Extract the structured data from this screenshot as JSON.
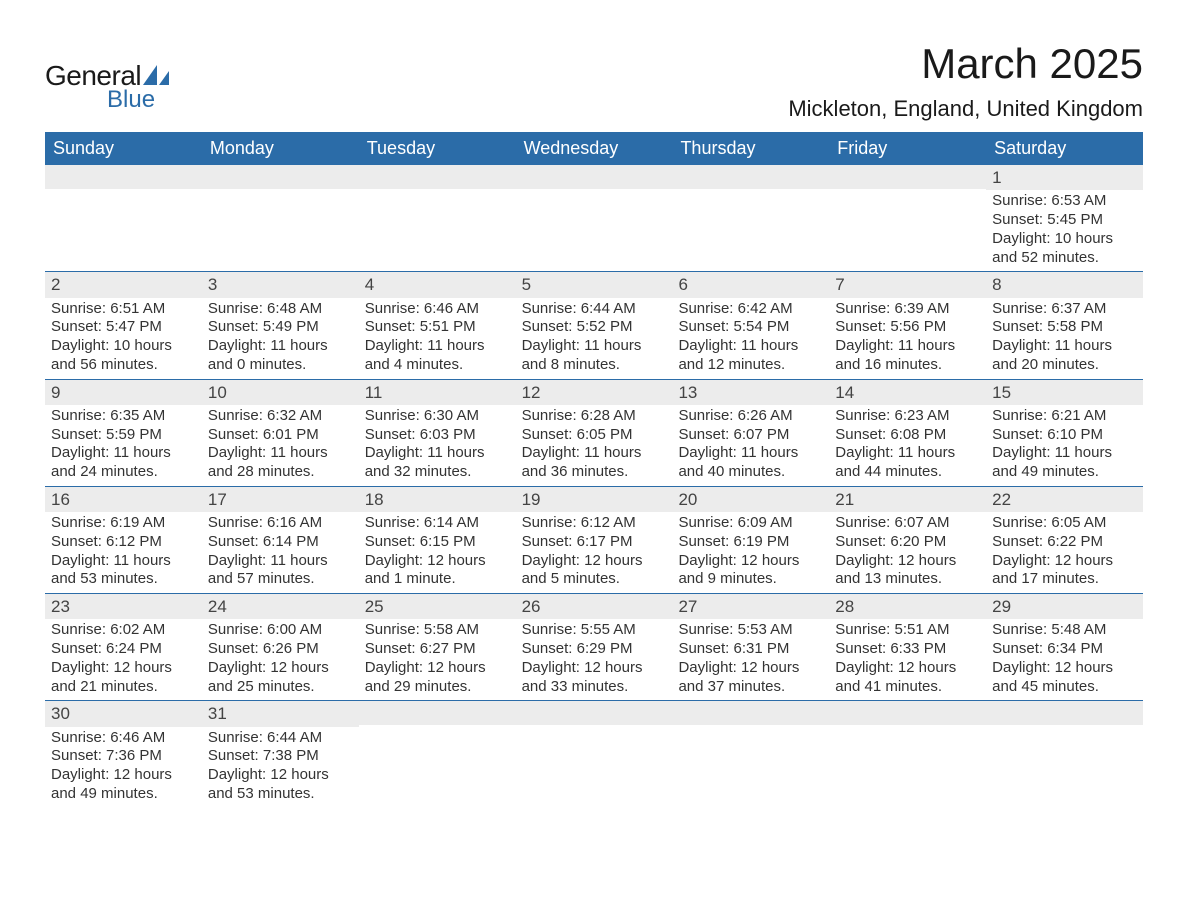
{
  "logo": {
    "text_general": "General",
    "text_blue": "Blue",
    "sail_color": "#2b6ca8",
    "text_color": "#1a1a1a"
  },
  "title": "March 2025",
  "location": "Mickleton, England, United Kingdom",
  "colors": {
    "header_bg": "#2b6ca8",
    "header_text": "#ffffff",
    "daynum_bg": "#ececec",
    "row_border": "#2b6ca8",
    "body_text": "#333333",
    "background": "#ffffff"
  },
  "typography": {
    "title_fontsize": 42,
    "location_fontsize": 22,
    "header_fontsize": 18,
    "daynum_fontsize": 17,
    "cell_fontsize": 15,
    "font_family": "Arial"
  },
  "day_headers": [
    "Sunday",
    "Monday",
    "Tuesday",
    "Wednesday",
    "Thursday",
    "Friday",
    "Saturday"
  ],
  "weeks": [
    [
      null,
      null,
      null,
      null,
      null,
      null,
      {
        "n": "1",
        "sunrise": "Sunrise: 6:53 AM",
        "sunset": "Sunset: 5:45 PM",
        "d1": "Daylight: 10 hours",
        "d2": "and 52 minutes."
      }
    ],
    [
      {
        "n": "2",
        "sunrise": "Sunrise: 6:51 AM",
        "sunset": "Sunset: 5:47 PM",
        "d1": "Daylight: 10 hours",
        "d2": "and 56 minutes."
      },
      {
        "n": "3",
        "sunrise": "Sunrise: 6:48 AM",
        "sunset": "Sunset: 5:49 PM",
        "d1": "Daylight: 11 hours",
        "d2": "and 0 minutes."
      },
      {
        "n": "4",
        "sunrise": "Sunrise: 6:46 AM",
        "sunset": "Sunset: 5:51 PM",
        "d1": "Daylight: 11 hours",
        "d2": "and 4 minutes."
      },
      {
        "n": "5",
        "sunrise": "Sunrise: 6:44 AM",
        "sunset": "Sunset: 5:52 PM",
        "d1": "Daylight: 11 hours",
        "d2": "and 8 minutes."
      },
      {
        "n": "6",
        "sunrise": "Sunrise: 6:42 AM",
        "sunset": "Sunset: 5:54 PM",
        "d1": "Daylight: 11 hours",
        "d2": "and 12 minutes."
      },
      {
        "n": "7",
        "sunrise": "Sunrise: 6:39 AM",
        "sunset": "Sunset: 5:56 PM",
        "d1": "Daylight: 11 hours",
        "d2": "and 16 minutes."
      },
      {
        "n": "8",
        "sunrise": "Sunrise: 6:37 AM",
        "sunset": "Sunset: 5:58 PM",
        "d1": "Daylight: 11 hours",
        "d2": "and 20 minutes."
      }
    ],
    [
      {
        "n": "9",
        "sunrise": "Sunrise: 6:35 AM",
        "sunset": "Sunset: 5:59 PM",
        "d1": "Daylight: 11 hours",
        "d2": "and 24 minutes."
      },
      {
        "n": "10",
        "sunrise": "Sunrise: 6:32 AM",
        "sunset": "Sunset: 6:01 PM",
        "d1": "Daylight: 11 hours",
        "d2": "and 28 minutes."
      },
      {
        "n": "11",
        "sunrise": "Sunrise: 6:30 AM",
        "sunset": "Sunset: 6:03 PM",
        "d1": "Daylight: 11 hours",
        "d2": "and 32 minutes."
      },
      {
        "n": "12",
        "sunrise": "Sunrise: 6:28 AM",
        "sunset": "Sunset: 6:05 PM",
        "d1": "Daylight: 11 hours",
        "d2": "and 36 minutes."
      },
      {
        "n": "13",
        "sunrise": "Sunrise: 6:26 AM",
        "sunset": "Sunset: 6:07 PM",
        "d1": "Daylight: 11 hours",
        "d2": "and 40 minutes."
      },
      {
        "n": "14",
        "sunrise": "Sunrise: 6:23 AM",
        "sunset": "Sunset: 6:08 PM",
        "d1": "Daylight: 11 hours",
        "d2": "and 44 minutes."
      },
      {
        "n": "15",
        "sunrise": "Sunrise: 6:21 AM",
        "sunset": "Sunset: 6:10 PM",
        "d1": "Daylight: 11 hours",
        "d2": "and 49 minutes."
      }
    ],
    [
      {
        "n": "16",
        "sunrise": "Sunrise: 6:19 AM",
        "sunset": "Sunset: 6:12 PM",
        "d1": "Daylight: 11 hours",
        "d2": "and 53 minutes."
      },
      {
        "n": "17",
        "sunrise": "Sunrise: 6:16 AM",
        "sunset": "Sunset: 6:14 PM",
        "d1": "Daylight: 11 hours",
        "d2": "and 57 minutes."
      },
      {
        "n": "18",
        "sunrise": "Sunrise: 6:14 AM",
        "sunset": "Sunset: 6:15 PM",
        "d1": "Daylight: 12 hours",
        "d2": "and 1 minute."
      },
      {
        "n": "19",
        "sunrise": "Sunrise: 6:12 AM",
        "sunset": "Sunset: 6:17 PM",
        "d1": "Daylight: 12 hours",
        "d2": "and 5 minutes."
      },
      {
        "n": "20",
        "sunrise": "Sunrise: 6:09 AM",
        "sunset": "Sunset: 6:19 PM",
        "d1": "Daylight: 12 hours",
        "d2": "and 9 minutes."
      },
      {
        "n": "21",
        "sunrise": "Sunrise: 6:07 AM",
        "sunset": "Sunset: 6:20 PM",
        "d1": "Daylight: 12 hours",
        "d2": "and 13 minutes."
      },
      {
        "n": "22",
        "sunrise": "Sunrise: 6:05 AM",
        "sunset": "Sunset: 6:22 PM",
        "d1": "Daylight: 12 hours",
        "d2": "and 17 minutes."
      }
    ],
    [
      {
        "n": "23",
        "sunrise": "Sunrise: 6:02 AM",
        "sunset": "Sunset: 6:24 PM",
        "d1": "Daylight: 12 hours",
        "d2": "and 21 minutes."
      },
      {
        "n": "24",
        "sunrise": "Sunrise: 6:00 AM",
        "sunset": "Sunset: 6:26 PM",
        "d1": "Daylight: 12 hours",
        "d2": "and 25 minutes."
      },
      {
        "n": "25",
        "sunrise": "Sunrise: 5:58 AM",
        "sunset": "Sunset: 6:27 PM",
        "d1": "Daylight: 12 hours",
        "d2": "and 29 minutes."
      },
      {
        "n": "26",
        "sunrise": "Sunrise: 5:55 AM",
        "sunset": "Sunset: 6:29 PM",
        "d1": "Daylight: 12 hours",
        "d2": "and 33 minutes."
      },
      {
        "n": "27",
        "sunrise": "Sunrise: 5:53 AM",
        "sunset": "Sunset: 6:31 PM",
        "d1": "Daylight: 12 hours",
        "d2": "and 37 minutes."
      },
      {
        "n": "28",
        "sunrise": "Sunrise: 5:51 AM",
        "sunset": "Sunset: 6:33 PM",
        "d1": "Daylight: 12 hours",
        "d2": "and 41 minutes."
      },
      {
        "n": "29",
        "sunrise": "Sunrise: 5:48 AM",
        "sunset": "Sunset: 6:34 PM",
        "d1": "Daylight: 12 hours",
        "d2": "and 45 minutes."
      }
    ],
    [
      {
        "n": "30",
        "sunrise": "Sunrise: 6:46 AM",
        "sunset": "Sunset: 7:36 PM",
        "d1": "Daylight: 12 hours",
        "d2": "and 49 minutes."
      },
      {
        "n": "31",
        "sunrise": "Sunrise: 6:44 AM",
        "sunset": "Sunset: 7:38 PM",
        "d1": "Daylight: 12 hours",
        "d2": "and 53 minutes."
      },
      null,
      null,
      null,
      null,
      null
    ]
  ]
}
